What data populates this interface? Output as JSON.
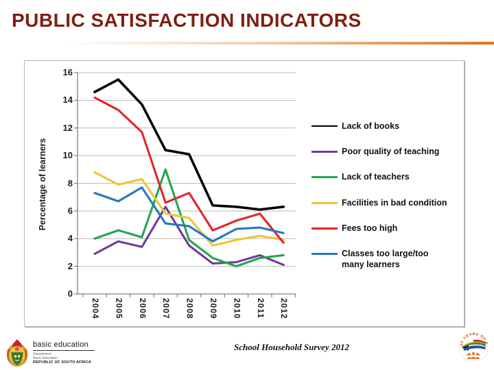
{
  "slide": {
    "title": "PUBLIC SATISFACTION INDICATORS",
    "accent_colors": {
      "title_text": "#7E1F12",
      "rule_orange": "#DB7320"
    },
    "footer": {
      "source": "School Household Survey 2012",
      "gov_logo": {
        "brand": "basic education",
        "line1": "Department:",
        "line2": "Basic Education",
        "line3": "REPUBLIC OF SOUTH AFRICA"
      },
      "right_logo": "20-years-of-freedom-emblem"
    }
  },
  "chart_data": {
    "type": "line",
    "title": "",
    "xlabel": "",
    "ylabel": "Percentage of learners",
    "categories": [
      "2004",
      "2005",
      "2006",
      "2007",
      "2008",
      "2009",
      "2010",
      "2011",
      "2012"
    ],
    "ylim": [
      0,
      16
    ],
    "yticks": [
      0,
      2,
      4,
      6,
      8,
      10,
      12,
      14,
      16
    ],
    "grid": true,
    "legend_position": "right",
    "series": [
      {
        "name": "Lack of books",
        "color": "#000000",
        "values": [
          14.6,
          15.5,
          13.7,
          10.4,
          10.1,
          6.4,
          6.3,
          6.1,
          6.3
        ]
      },
      {
        "name": "Poor quality of teaching",
        "color": "#71389E",
        "values": [
          2.9,
          3.8,
          3.4,
          6.3,
          3.5,
          2.2,
          2.3,
          2.8,
          2.1
        ]
      },
      {
        "name": "Lack of teachers",
        "color": "#22A64E",
        "values": [
          4.0,
          4.6,
          4.1,
          9.0,
          3.9,
          2.6,
          2.0,
          2.6,
          2.8
        ]
      },
      {
        "name": "Facilities in bad condition",
        "color": "#EFC437",
        "values": [
          8.8,
          7.9,
          8.3,
          5.8,
          5.5,
          3.5,
          3.9,
          4.2,
          3.9
        ]
      },
      {
        "name": "Fees too high",
        "color": "#E3242B",
        "values": [
          14.2,
          13.3,
          11.7,
          6.6,
          7.3,
          4.6,
          5.3,
          5.8,
          3.7
        ]
      },
      {
        "name": "Classes too large/too many learners",
        "color": "#2478BE",
        "values": [
          7.3,
          6.7,
          7.7,
          5.1,
          4.9,
          3.8,
          4.7,
          4.8,
          4.4
        ]
      }
    ]
  }
}
